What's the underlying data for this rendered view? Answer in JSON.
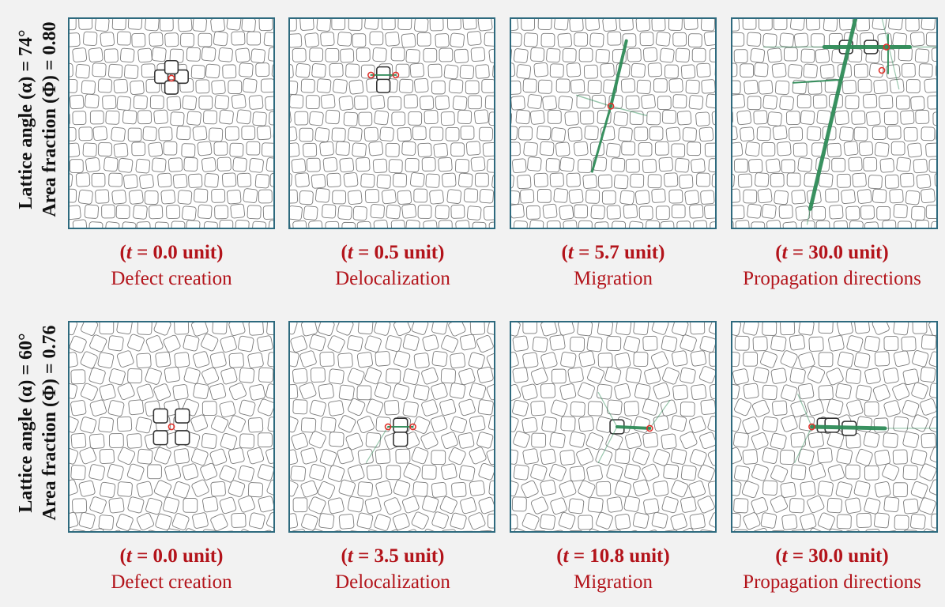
{
  "rows": [
    {
      "angle_label": "Lattice angle (α) = 74°",
      "fraction_label": "Area fraction (Φ) = 0.80",
      "lattice_angle_deg": 74,
      "area_fraction": 0.8,
      "panels": [
        {
          "time_prefix": "(",
          "time_var": "t",
          "time_value": " = 0.0 unit)",
          "stage": "Defect creation"
        },
        {
          "time_prefix": "(",
          "time_var": "t",
          "time_value": " = 0.5 unit)",
          "stage": "Delocalization"
        },
        {
          "time_prefix": "(",
          "time_var": "t",
          "time_value": " = 5.7 unit)",
          "stage": "Migration"
        },
        {
          "time_prefix": "(",
          "time_var": "t",
          "time_value": " = 30.0 unit)",
          "stage": "Propagation directions"
        }
      ]
    },
    {
      "angle_label": "Lattice angle (α) = 60°",
      "fraction_label": "Area fraction (Φ) = 0.76",
      "lattice_angle_deg": 60,
      "area_fraction": 0.76,
      "panels": [
        {
          "time_prefix": "(",
          "time_var": "t",
          "time_value": " = 0.0 unit)",
          "stage": "Defect creation"
        },
        {
          "time_prefix": "(",
          "time_var": "t",
          "time_value": " = 3.5 unit)",
          "stage": "Delocalization"
        },
        {
          "time_prefix": "(",
          "time_var": "t",
          "time_value": " = 10.8 unit)",
          "stage": "Migration"
        },
        {
          "time_prefix": "(",
          "time_var": "t",
          "time_value": " = 30.0 unit)",
          "stage": "Propagation directions"
        }
      ]
    }
  ],
  "colors": {
    "frame": "#2e6a7e",
    "caption": "#b3141b",
    "particle": "#7a7a7a",
    "defect": "#e0322b",
    "trail": "#2e8b57"
  }
}
